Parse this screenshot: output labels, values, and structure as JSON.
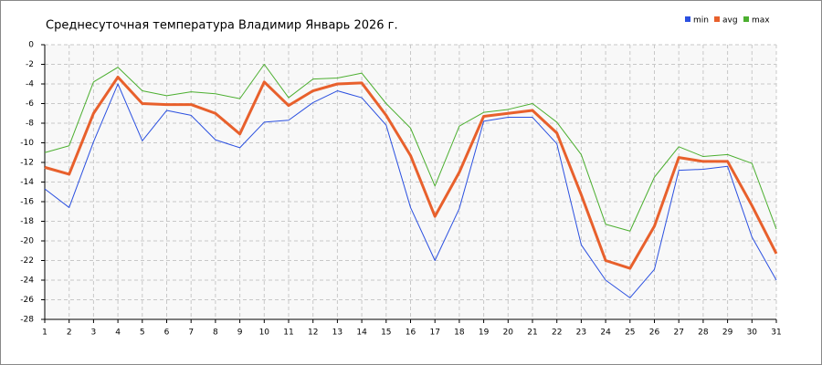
{
  "chart_data": {
    "type": "line",
    "title": "Среднесуточная температура Владимир  Январь 2026 г.",
    "categories": [
      "1",
      "2",
      "3",
      "4",
      "5",
      "6",
      "7",
      "8",
      "9",
      "10",
      "11",
      "12",
      "13",
      "14",
      "15",
      "16",
      "17",
      "18",
      "19",
      "20",
      "21",
      "22",
      "23",
      "24",
      "25",
      "26",
      "27",
      "28",
      "29",
      "30",
      "31"
    ],
    "series": [
      {
        "name": "min",
        "color": "#2b50e0",
        "width": 1,
        "values": [
          -14.7,
          -16.6,
          -9.9,
          -4.0,
          -9.8,
          -6.7,
          -7.2,
          -9.7,
          -10.5,
          -7.9,
          -7.7,
          -5.9,
          -4.7,
          -5.4,
          -8.2,
          -16.6,
          -22.0,
          -16.7,
          -7.8,
          -7.4,
          -7.4,
          -10.1,
          -20.4,
          -24.0,
          -25.8,
          -22.9,
          -12.8,
          -12.7,
          -12.4,
          -19.6,
          -24.0
        ]
      },
      {
        "name": "avg",
        "color": "#e8602c",
        "width": 3,
        "values": [
          -12.5,
          -13.2,
          -7.0,
          -3.3,
          -6.0,
          -6.1,
          -6.1,
          -7.0,
          -9.1,
          -3.8,
          -6.2,
          -4.7,
          -4.0,
          -3.9,
          -7.2,
          -11.3,
          -17.5,
          -13.0,
          -7.3,
          -7.0,
          -6.7,
          -9.0,
          -15.3,
          -22.0,
          -22.8,
          -18.5,
          -11.5,
          -11.9,
          -11.9,
          -16.4,
          -21.3
        ]
      },
      {
        "name": "max",
        "color": "#4caf30",
        "width": 1,
        "values": [
          -11.0,
          -10.3,
          -3.8,
          -2.3,
          -4.7,
          -5.2,
          -4.8,
          -5.0,
          -5.5,
          -2.0,
          -5.4,
          -3.5,
          -3.4,
          -2.9,
          -6.0,
          -8.5,
          -14.4,
          -8.3,
          -6.9,
          -6.6,
          -6.0,
          -7.9,
          -11.2,
          -18.3,
          -19.0,
          -13.5,
          -10.4,
          -11.4,
          -11.2,
          -12.1,
          -18.8
        ]
      }
    ],
    "ylim": [
      -28,
      0
    ],
    "yticks": [
      0,
      -2,
      -4,
      -6,
      -8,
      -10,
      -12,
      -14,
      -16,
      -18,
      -20,
      -22,
      -24,
      -26,
      -28
    ],
    "grid": true,
    "legend": "top-right"
  }
}
